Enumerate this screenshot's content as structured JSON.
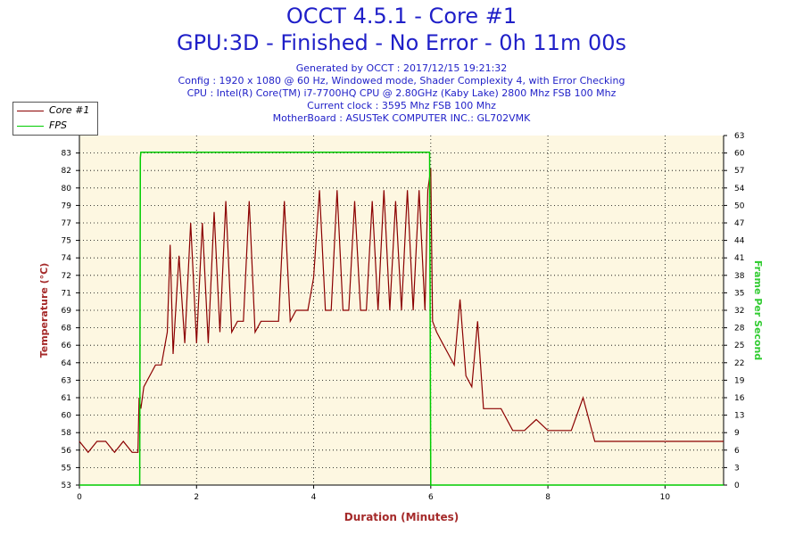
{
  "header": {
    "title": "OCCT 4.5.1 - Core #1",
    "subtitle": "GPU:3D - Finished - No Error - 0h 11m 00s",
    "generated": "Generated by OCCT : 2017/12/15 19:21:32",
    "config": "Config : 1920 x 1080 @ 60 Hz, Windowed mode, Shader Complexity 4, with Error Checking",
    "cpu": "CPU : Intel(R) Core(TM) i7-7700HQ CPU @ 2.80GHz (Kaby Lake) 2800 Mhz FSB 100 Mhz",
    "clock": "Current clock : 3595 Mhz FSB 100 Mhz",
    "motherboard": "MotherBoard : ASUSTeK COMPUTER INC.: GL702VMK"
  },
  "colors": {
    "title": "#1f1fc8",
    "plot_bg": "#fdf7e1",
    "temp_line": "#8b0000",
    "fps_line": "#00cc00",
    "axis_label": "#a52a2a",
    "fps_label": "#33cc33"
  },
  "chart_data": {
    "type": "line",
    "xlabel": "Duration (Minutes)",
    "ylabel": "Temperature (°C)",
    "y2label": "Frame Per Second",
    "xlim": [
      0,
      11
    ],
    "ylim": [
      53,
      85
    ],
    "y2lim": [
      0,
      63
    ],
    "grid": true,
    "legend_position": "top-left",
    "x_ticks": [
      "0",
      "2",
      "4",
      "6",
      "8",
      "10"
    ],
    "y_ticks": [
      "53",
      "55",
      "56",
      "58",
      "60",
      "61",
      "63",
      "64",
      "66",
      "68",
      "69",
      "71",
      "72",
      "74",
      "75",
      "77",
      "79",
      "80",
      "82",
      "83"
    ],
    "y2_ticks": [
      "0",
      "3",
      "6",
      "9",
      "13",
      "16",
      "19",
      "22",
      "25",
      "28",
      "32",
      "35",
      "38",
      "41",
      "44",
      "47",
      "50",
      "54",
      "57",
      "60",
      "63"
    ],
    "series": [
      {
        "name": "Core #1",
        "x": [
          0,
          0.15,
          0.3,
          0.45,
          0.6,
          0.75,
          0.9,
          1.0,
          1.02,
          1.05,
          1.1,
          1.2,
          1.3,
          1.4,
          1.5,
          1.55,
          1.6,
          1.7,
          1.8,
          1.9,
          2.0,
          2.1,
          2.2,
          2.3,
          2.4,
          2.5,
          2.6,
          2.7,
          2.8,
          2.9,
          3.0,
          3.1,
          3.2,
          3.3,
          3.4,
          3.5,
          3.6,
          3.7,
          3.8,
          3.9,
          4.0,
          4.1,
          4.2,
          4.3,
          4.4,
          4.5,
          4.6,
          4.7,
          4.8,
          4.9,
          5.0,
          5.1,
          5.2,
          5.3,
          5.4,
          5.5,
          5.6,
          5.7,
          5.8,
          5.9,
          5.95,
          6.0,
          6.03,
          6.1,
          6.2,
          6.3,
          6.4,
          6.5,
          6.6,
          6.7,
          6.8,
          6.85,
          6.9,
          7.0,
          7.1,
          7.2,
          7.4,
          7.6,
          7.8,
          8.0,
          8.2,
          8.4,
          8.6,
          8.8,
          9.0,
          9.2,
          9.4,
          9.6,
          9.8,
          10.0,
          10.2,
          10.4,
          10.6,
          10.8,
          11.0
        ],
        "values": [
          57,
          56,
          57,
          57,
          56,
          57,
          56,
          56,
          61,
          60,
          62,
          63,
          64,
          64,
          67,
          75,
          65,
          74,
          66,
          77,
          66,
          77,
          66,
          78,
          67,
          79,
          67,
          68,
          68,
          79,
          67,
          68,
          68,
          68,
          68,
          79,
          68,
          69,
          69,
          69,
          72,
          80,
          69,
          69,
          80,
          69,
          69,
          79,
          69,
          69,
          79,
          69,
          80,
          69,
          79,
          69,
          80,
          69,
          80,
          69,
          80,
          82,
          68,
          67,
          66,
          65,
          64,
          70,
          63,
          62,
          68,
          64,
          60,
          60,
          60,
          60,
          58,
          58,
          59,
          58,
          58,
          58,
          61,
          57,
          57,
          57,
          57,
          57,
          57,
          57,
          57,
          57,
          57,
          57,
          57
        ]
      },
      {
        "name": "FPS",
        "x": [
          0,
          1.03,
          1.04,
          1.05,
          5.98,
          6.0,
          11.0
        ],
        "values": [
          0,
          0,
          59,
          60,
          60,
          0,
          0
        ]
      }
    ]
  }
}
